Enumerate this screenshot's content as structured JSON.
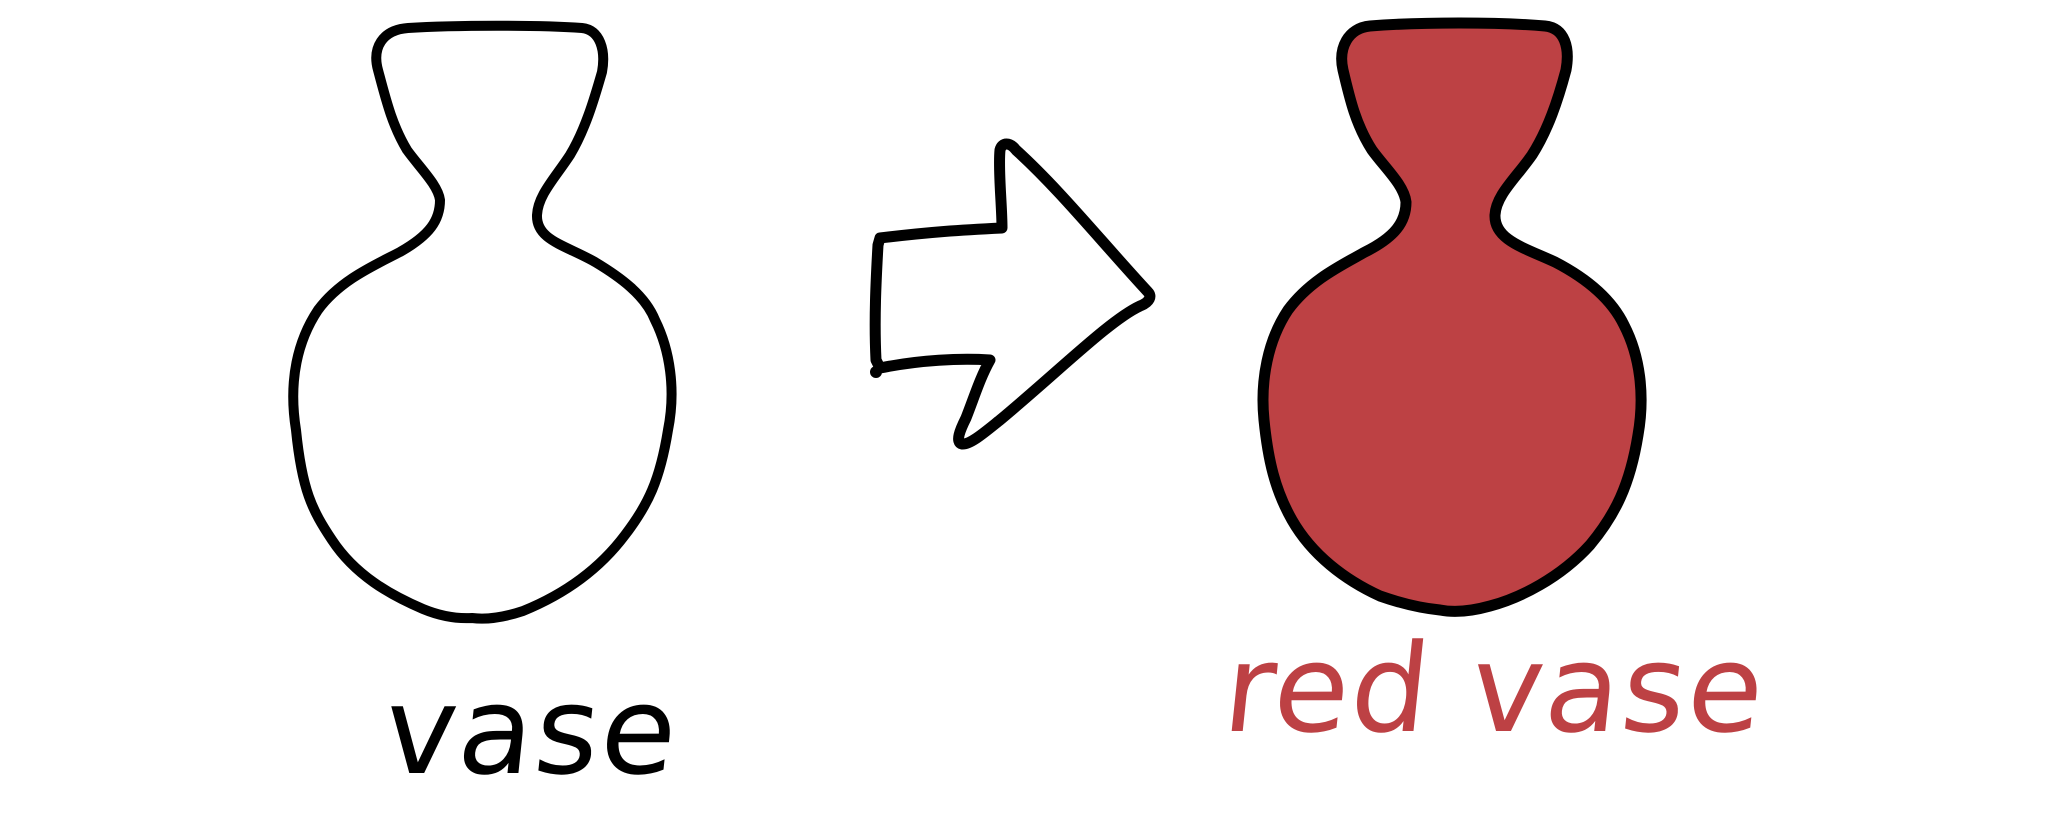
{
  "labels": {
    "left": "vase",
    "right": "red vase"
  },
  "icons": {
    "left_vase": "vase-outline-icon",
    "arrow": "arrow-right-icon",
    "right_vase": "red-vase-icon"
  },
  "colors": {
    "outline": "#000000",
    "vase_fill": "#ffffff",
    "red_vase_fill": "#bd4144",
    "left_label_color": "#000000",
    "right_label_color": "#bd4144",
    "background": "#ffffff"
  }
}
